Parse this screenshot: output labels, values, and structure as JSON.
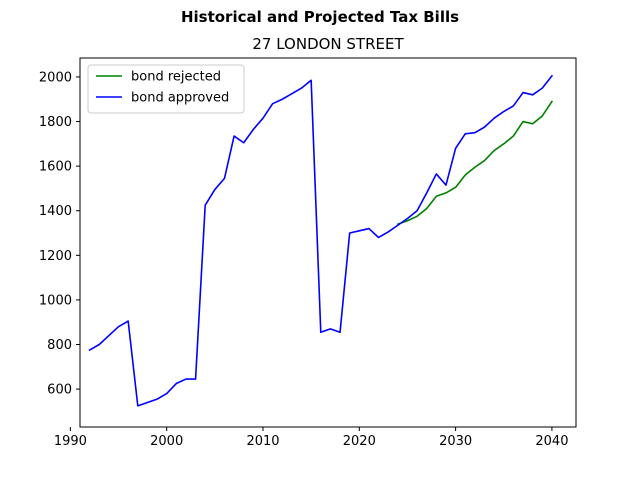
{
  "chart_data": {
    "type": "line",
    "suptitle": "Historical and Projected Tax Bills",
    "title": "27 LONDON STREET",
    "xlabel": "",
    "ylabel": "",
    "xlim": [
      1991,
      2042.5
    ],
    "ylim": [
      430,
      2085
    ],
    "xticks": [
      1990,
      2000,
      2010,
      2020,
      2030,
      2040
    ],
    "yticks": [
      600,
      800,
      1000,
      1200,
      1400,
      1600,
      1800,
      2000
    ],
    "legend_position": "top-left",
    "grid": false,
    "series": [
      {
        "name": "bond rejected",
        "color": "#008000",
        "x": [
          2024,
          2025,
          2026,
          2027,
          2028,
          2029,
          2030,
          2031,
          2032,
          2033,
          2034,
          2035,
          2036,
          2037,
          2038,
          2039,
          2040
        ],
        "y": [
          1340,
          1355,
          1375,
          1410,
          1465,
          1480,
          1505,
          1560,
          1595,
          1625,
          1670,
          1700,
          1735,
          1800,
          1790,
          1825,
          1890
        ]
      },
      {
        "name": "bond approved",
        "color": "#0000ff",
        "x": [
          1992,
          1993,
          1994,
          1995,
          1996,
          1997,
          1998,
          1999,
          2000,
          2001,
          2002,
          2003,
          2004,
          2005,
          2006,
          2007,
          2008,
          2009,
          2010,
          2011,
          2012,
          2013,
          2014,
          2015,
          2016,
          2017,
          2018,
          2019,
          2020,
          2021,
          2022,
          2023,
          2024,
          2025,
          2026,
          2027,
          2028,
          2029,
          2030,
          2031,
          2032,
          2033,
          2034,
          2035,
          2036,
          2037,
          2038,
          2039,
          2040
        ],
        "y": [
          775,
          800,
          840,
          880,
          905,
          525,
          540,
          555,
          580,
          625,
          645,
          645,
          1425,
          1495,
          1545,
          1735,
          1705,
          1765,
          1815,
          1880,
          1900,
          1925,
          1950,
          1985,
          855,
          870,
          855,
          1300,
          1310,
          1320,
          1280,
          1305,
          1335,
          1365,
          1400,
          1480,
          1565,
          1515,
          1680,
          1745,
          1750,
          1775,
          1815,
          1845,
          1870,
          1930,
          1920,
          1950,
          2005
        ]
      }
    ]
  }
}
